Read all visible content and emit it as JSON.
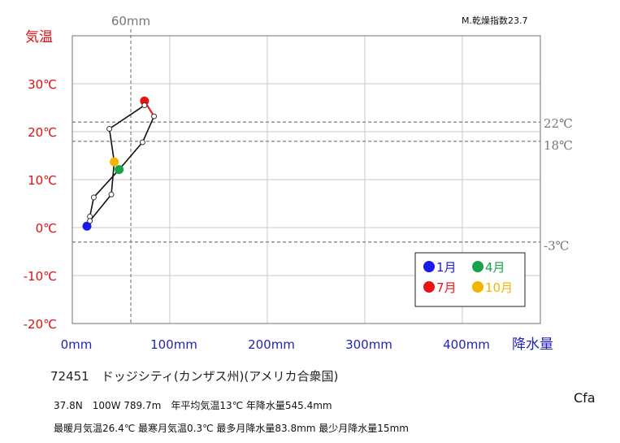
{
  "chart_data": {
    "type": "line",
    "title": "",
    "xlabel": "降水量",
    "ylabel": "気温",
    "xlim": [
      0,
      480
    ],
    "ylim": [
      -20,
      40
    ],
    "x_ticks": [
      "0mm",
      "100mm",
      "200mm",
      "300mm",
      "400mm"
    ],
    "y_ticks": [
      "30℃",
      "20℃",
      "10℃",
      "0℃",
      "-10℃",
      "-20℃"
    ],
    "grid": true,
    "dryness_index": "M.乾燥指数23.7",
    "reference_lines": {
      "vertical": [
        {
          "x": 60,
          "label": "60mm"
        }
      ],
      "horizontal": [
        {
          "y": 22,
          "label": "22℃"
        },
        {
          "y": 18,
          "label": "18℃"
        },
        {
          "y": -3,
          "label": "-3℃"
        }
      ]
    },
    "months": [
      {
        "month": 1,
        "precip": 15,
        "temp": 0.3
      },
      {
        "month": 2,
        "precip": 18,
        "temp": 2.3
      },
      {
        "month": 3,
        "precip": 22,
        "temp": 6.3
      },
      {
        "month": 4,
        "precip": 48,
        "temp": 12.1
      },
      {
        "month": 5,
        "precip": 72,
        "temp": 17.8
      },
      {
        "month": 6,
        "precip": 83.8,
        "temp": 23.2
      },
      {
        "month": 7,
        "precip": 74,
        "temp": 26.4
      },
      {
        "month": 8,
        "precip": 74,
        "temp": 25.5
      },
      {
        "month": 9,
        "precip": 38,
        "temp": 20.6
      },
      {
        "month": 10,
        "precip": 43,
        "temp": 13.7
      },
      {
        "month": 11,
        "precip": 40,
        "temp": 6.9
      },
      {
        "month": 12,
        "precip": 18,
        "temp": 1.4
      }
    ],
    "legend": [
      {
        "label": "1月",
        "month": 1,
        "color": "#1a1aee"
      },
      {
        "label": "4月",
        "month": 4,
        "color": "#16a34a"
      },
      {
        "label": "7月",
        "month": 7,
        "color": "#ee1111"
      },
      {
        "label": "10月",
        "month": 10,
        "color": "#f5b400"
      }
    ],
    "legend_placement": "bottom-right"
  },
  "station": "72451　ドッジシティ(カンザス州)(アメリカ合衆国)",
  "info_line1": "37.8N　100W 789.7m　年平均気温13℃ 年降水量545.4mm",
  "info_line2": "最暖月気温26.4℃ 最寒月気温0.3℃ 最多月降水量83.8mm 最少月降水量15mm",
  "climate_code": "Cfa",
  "colors": {
    "temp_axis": "#dd1111",
    "precip_axis": "#2222bb",
    "reference": "#888888",
    "grid": "#c8c8c8"
  }
}
